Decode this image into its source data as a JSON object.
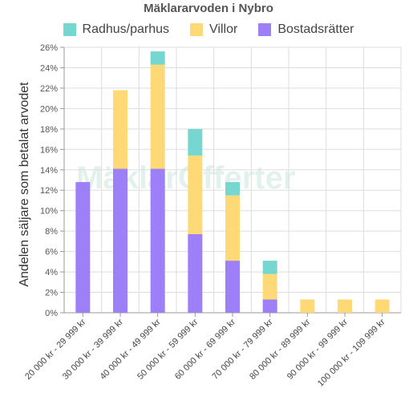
{
  "chart_data": {
    "type": "bar",
    "stacked": true,
    "title": "Mäklararvoden i Nybro",
    "ylabel": "Andelen säljare som betalat arvodet",
    "xlabel": "",
    "ylim": [
      0,
      26
    ],
    "yticks": [
      "0%",
      "2%",
      "4%",
      "6%",
      "8%",
      "10%",
      "12%",
      "14%",
      "16%",
      "18%",
      "20%",
      "22%",
      "24%",
      "26%"
    ],
    "grid": true,
    "legend_position": "top",
    "categories": [
      "20 000 kr - 29 999 kr",
      "30 000 kr - 39 999 kr",
      "40 000 kr - 49 999 kr",
      "50 000 kr - 59 999 kr",
      "60 000 kr - 69 999 kr",
      "70 000 kr - 79 999 kr",
      "80 000 kr - 89 999 kr",
      "90 000 kr - 99 999 kr",
      "100 000 kr - 109 999 kr"
    ],
    "series": [
      {
        "name": "Bostadsrätter",
        "color": "#9d7ff7",
        "values": [
          12.8,
          14.1,
          14.1,
          7.7,
          5.1,
          1.3,
          0,
          0,
          0
        ]
      },
      {
        "name": "Villor",
        "color": "#fed975",
        "values": [
          0,
          7.7,
          10.2,
          7.7,
          6.4,
          2.5,
          1.3,
          1.3,
          1.3
        ]
      },
      {
        "name": "Radhus/parhus",
        "color": "#76d7d0",
        "values": [
          0,
          0,
          1.3,
          2.6,
          1.3,
          1.3,
          0,
          0,
          0
        ]
      }
    ],
    "legend_order": [
      "Radhus/parhus",
      "Villor",
      "Bostadsrätter"
    ]
  },
  "watermark": "MäklarOfferter"
}
